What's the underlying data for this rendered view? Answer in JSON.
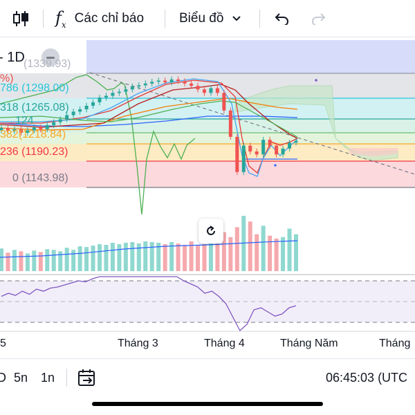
{
  "toolbar": {
    "indicators_label": "Các chỉ báo",
    "chart_type_label": "Biểu đồ"
  },
  "symbol": {
    "label": "- 1D"
  },
  "fib_levels": [
    {
      "ratio": "",
      "price": "(1339.93)",
      "color": "#b2b5be"
    },
    {
      "ratio": "786",
      "price": "(1298.00)",
      "color": "#26c6da"
    },
    {
      "ratio": "318",
      "price": "(1265.08)",
      "color": "#26a69a"
    },
    {
      "ratio": "",
      "price": "(1218.84)",
      "color": "#f9a825"
    },
    {
      "ratio": "236",
      "price": "(1190.23)",
      "color": "#f23645"
    },
    {
      "ratio": "0",
      "price": "(1143.98)",
      "color": "#787b86"
    }
  ],
  "fib_side": {
    "percent": "%)",
    "partial_a": "124",
    "partial_b": "382"
  },
  "x_axis": {
    "labels": [
      "5",
      "Tháng 3",
      "Tháng 4",
      "Tháng Năm",
      "Tháng"
    ]
  },
  "bottom": {
    "ranges": [
      "D",
      "5n",
      "1n"
    ],
    "clock": "06:45:03 (UTC"
  },
  "colors": {
    "up": "#26a69a",
    "down": "#ef5350",
    "fib_grey": "#b2b5be",
    "fib_cyan": "#26c6da",
    "fib_teal": "#26a69a",
    "fib_orange": "#f9a825",
    "fib_red": "#f23645",
    "rsi": "#7e57c2",
    "ichimoku": "#a5d6a7",
    "sma": "#4caf50"
  },
  "chart_data": {
    "type": "candlestick",
    "title": "",
    "fib_prices": [
      1339.93,
      1298.0,
      1265.08,
      1218.84,
      1190.23,
      1143.98
    ],
    "candles_close": [
      1230,
      1225,
      1228,
      1222,
      1226,
      1231,
      1228,
      1235,
      1240,
      1245,
      1252,
      1258,
      1262,
      1268,
      1274,
      1282,
      1285,
      1290,
      1292,
      1296,
      1301,
      1303,
      1306,
      1309,
      1311,
      1308,
      1313,
      1310,
      1306,
      1302,
      1296,
      1290,
      1298,
      1290,
      1260,
      1215,
      1155,
      1200,
      1190,
      1185,
      1210,
      1200,
      1185,
      1195,
      1205,
      1208
    ],
    "volume": [
      32,
      26,
      30,
      28,
      25,
      29,
      27,
      31,
      30,
      28,
      33,
      30,
      35,
      34,
      36,
      38,
      37,
      40,
      38,
      40,
      41,
      39,
      42,
      41,
      40,
      38,
      41,
      39,
      37,
      42,
      36,
      38,
      40,
      45,
      55,
      48,
      62,
      78,
      70,
      52,
      64,
      50,
      46,
      48,
      60,
      52
    ],
    "rsi": [
      55,
      58,
      56,
      60,
      57,
      62,
      60,
      63,
      64,
      66,
      68,
      70,
      69,
      72,
      74,
      76,
      78,
      80,
      79,
      82,
      80,
      81,
      83,
      80,
      78,
      74,
      70,
      67,
      64,
      58,
      60,
      55,
      48,
      35,
      22,
      28,
      42,
      44,
      40,
      36,
      38,
      44,
      46
    ]
  }
}
